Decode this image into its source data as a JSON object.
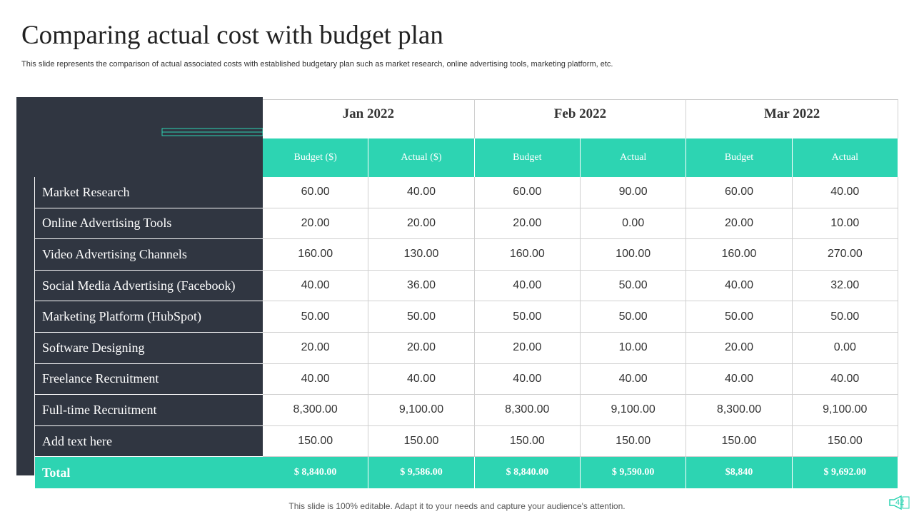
{
  "slide": {
    "title": "Comparing actual cost with budget plan",
    "subtitle": "This slide represents the comparison of actual associated costs with established budgetary plan such as market research, online advertising tools, marketing platform, etc.",
    "footer": "This slide is 100% editable. Adapt it to your needs and capture your audience's attention.",
    "page_number": "42",
    "icon": "megaphone-icon"
  },
  "colors": {
    "accent": "#2dd4b2",
    "dark_panel": "#303641",
    "grid_line": "#d0d0d0"
  },
  "table": {
    "months": [
      "Jan 2022",
      "Feb 2022",
      "Mar 2022"
    ],
    "column_headers": [
      "Budget  ($)",
      "Actual  ($)",
      "Budget",
      "Actual",
      "Budget",
      "Actual"
    ],
    "rows": [
      {
        "label": "Market Research",
        "values": [
          "60.00",
          "40.00",
          "60.00",
          "90.00",
          "60.00",
          "40.00"
        ]
      },
      {
        "label": "Online Advertising Tools",
        "values": [
          "20.00",
          "20.00",
          "20.00",
          "0.00",
          "20.00",
          "10.00"
        ]
      },
      {
        "label": "Video Advertising Channels",
        "values": [
          "160.00",
          "130.00",
          "160.00",
          "100.00",
          "160.00",
          "270.00"
        ]
      },
      {
        "label": "Social Media Advertising (Facebook)",
        "values": [
          "40.00",
          "36.00",
          "40.00",
          "50.00",
          "40.00",
          "32.00"
        ]
      },
      {
        "label": "Marketing Platform (HubSpot)",
        "values": [
          "50.00",
          "50.00",
          "50.00",
          "50.00",
          "50.00",
          "50.00"
        ]
      },
      {
        "label": "Software Designing",
        "values": [
          "20.00",
          "20.00",
          "20.00",
          "10.00",
          "20.00",
          "0.00"
        ]
      },
      {
        "label": "Freelance Recruitment",
        "values": [
          "40.00",
          "40.00",
          "40.00",
          "40.00",
          "40.00",
          "40.00"
        ]
      },
      {
        "label": "Full-time Recruitment",
        "values": [
          "8,300.00",
          "9,100.00",
          "8,300.00",
          "9,100.00",
          "8,300.00",
          "9,100.00"
        ]
      },
      {
        "label": "Add text here",
        "values": [
          "150.00",
          "150.00",
          "150.00",
          "150.00",
          "150.00",
          "150.00"
        ]
      }
    ],
    "total": {
      "label": "Total",
      "values": [
        "$ 8,840.00",
        "$ 9,586.00",
        "$ 8,840.00",
        "$ 9,590.00",
        "$8,840",
        "$ 9,692.00"
      ]
    }
  }
}
